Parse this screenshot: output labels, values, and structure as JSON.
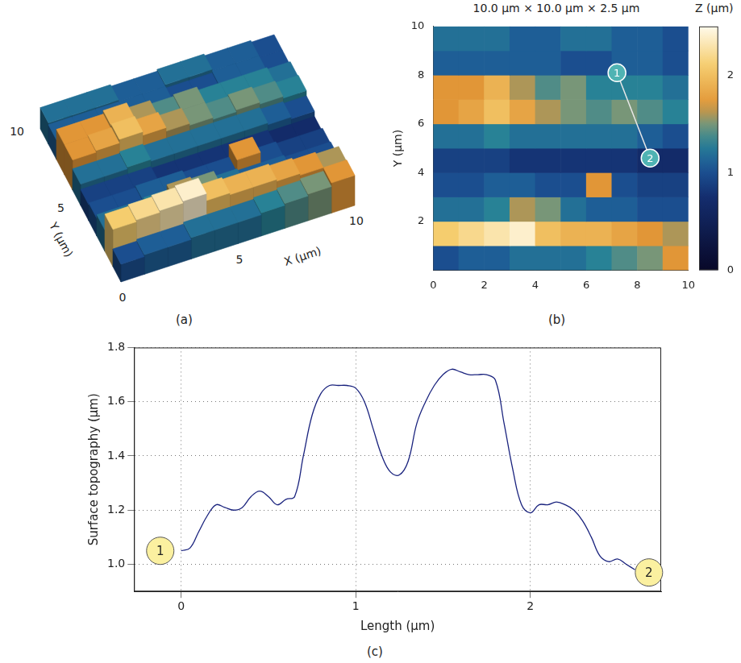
{
  "chart_data": [
    {
      "type": "surface",
      "label": "(a)",
      "x_edges": [
        0,
        1,
        2,
        3,
        4,
        5,
        6,
        7,
        8,
        9,
        10
      ],
      "y_edges": [
        0,
        1,
        2,
        3,
        4,
        5,
        6,
        7,
        8,
        9,
        10
      ],
      "z": [
        [
          1.0,
          1.1,
          1.1,
          1.2,
          1.2,
          1.2,
          1.3,
          1.4,
          1.5,
          1.7
        ],
        [
          2.1,
          2.2,
          2.3,
          2.4,
          2.0,
          1.9,
          1.9,
          1.8,
          1.7,
          1.6
        ],
        [
          1.2,
          1.2,
          1.3,
          1.6,
          1.5,
          1.2,
          1.1,
          1.1,
          1.0,
          1.0
        ],
        [
          1.0,
          1.0,
          1.1,
          1.1,
          1.0,
          1.0,
          1.7,
          1.0,
          0.9,
          0.9
        ],
        [
          0.9,
          0.9,
          0.9,
          0.8,
          0.8,
          0.8,
          0.8,
          0.8,
          0.7,
          0.7
        ],
        [
          1.2,
          1.2,
          1.3,
          1.2,
          1.2,
          1.2,
          1.2,
          1.2,
          1.1,
          1.0
        ],
        [
          1.7,
          1.8,
          2.0,
          1.8,
          1.6,
          1.5,
          1.4,
          1.5,
          1.4,
          1.3
        ],
        [
          1.7,
          1.7,
          1.9,
          1.6,
          1.4,
          1.5,
          1.3,
          1.3,
          1.3,
          1.2
        ],
        [
          1.1,
          1.1,
          1.1,
          1.1,
          1.1,
          1.0,
          1.0,
          1.1,
          1.1,
          1.0
        ],
        [
          1.2,
          1.2,
          1.2,
          1.1,
          1.1,
          1.2,
          1.2,
          1.1,
          1.1,
          1.0
        ]
      ],
      "zlim": [
        0,
        2.5
      ],
      "xlim": [
        0,
        10
      ],
      "ylim": [
        0,
        10
      ],
      "xticks": [
        0,
        5,
        10
      ],
      "yticks": [
        5,
        10
      ],
      "xlabel": "X (µm)",
      "ylabel": "Y (µm)"
    },
    {
      "type": "heatmap",
      "label": "(b)",
      "title": "10.0 µm × 10.0 µm × 2.5 µm",
      "x_edges": [
        0,
        1,
        2,
        3,
        4,
        5,
        6,
        7,
        8,
        9,
        10
      ],
      "y_edges": [
        0,
        1,
        2,
        3,
        4,
        5,
        6,
        7,
        8,
        9,
        10
      ],
      "z": [
        [
          1.0,
          1.1,
          1.1,
          1.2,
          1.2,
          1.2,
          1.3,
          1.4,
          1.5,
          1.7
        ],
        [
          2.1,
          2.2,
          2.3,
          2.4,
          2.0,
          1.9,
          1.9,
          1.8,
          1.7,
          1.6
        ],
        [
          1.2,
          1.2,
          1.3,
          1.6,
          1.5,
          1.2,
          1.1,
          1.1,
          1.0,
          1.0
        ],
        [
          1.0,
          1.0,
          1.1,
          1.1,
          1.0,
          1.0,
          1.7,
          1.0,
          0.9,
          0.9
        ],
        [
          0.9,
          0.9,
          0.9,
          0.8,
          0.8,
          0.8,
          0.8,
          0.8,
          0.7,
          0.7
        ],
        [
          1.2,
          1.2,
          1.3,
          1.2,
          1.2,
          1.2,
          1.2,
          1.2,
          1.1,
          1.0
        ],
        [
          1.7,
          1.8,
          2.0,
          1.8,
          1.6,
          1.5,
          1.4,
          1.5,
          1.4,
          1.3
        ],
        [
          1.7,
          1.7,
          1.9,
          1.6,
          1.4,
          1.5,
          1.3,
          1.3,
          1.3,
          1.2
        ],
        [
          1.1,
          1.1,
          1.1,
          1.1,
          1.1,
          1.0,
          1.0,
          1.1,
          1.1,
          1.0
        ],
        [
          1.2,
          1.2,
          1.2,
          1.1,
          1.1,
          1.2,
          1.2,
          1.1,
          1.1,
          1.0
        ]
      ],
      "xlim": [
        0,
        10
      ],
      "ylim": [
        0,
        10
      ],
      "xticks": [
        0,
        2,
        4,
        6,
        8,
        10
      ],
      "yticks": [
        2,
        4,
        6,
        8,
        10
      ],
      "ylabel": "Y (µm)",
      "colorbar_label": "Z (µm)",
      "colorbar_range": [
        0,
        2.5
      ],
      "colorbar_ticks": [
        0,
        1,
        2
      ],
      "annotations": [
        {
          "text": "1",
          "x": 7.2,
          "y": 8.1
        },
        {
          "text": "2",
          "x": 8.5,
          "y": 4.6
        }
      ]
    },
    {
      "type": "line",
      "label": "(c)",
      "x": [
        0,
        0.05,
        0.1,
        0.15,
        0.2,
        0.25,
        0.3,
        0.35,
        0.4,
        0.45,
        0.5,
        0.55,
        0.6,
        0.65,
        0.7,
        0.75,
        0.8,
        0.85,
        0.9,
        0.95,
        1.0,
        1.05,
        1.1,
        1.15,
        1.2,
        1.25,
        1.3,
        1.35,
        1.4,
        1.45,
        1.5,
        1.55,
        1.6,
        1.65,
        1.7,
        1.75,
        1.8,
        1.85,
        1.9,
        1.95,
        2.0,
        2.05,
        2.1,
        2.15,
        2.2,
        2.25,
        2.3,
        2.35,
        2.4,
        2.45,
        2.5,
        2.55,
        2.6
      ],
      "values": [
        1.05,
        1.06,
        1.12,
        1.18,
        1.22,
        1.21,
        1.2,
        1.21,
        1.25,
        1.27,
        1.25,
        1.22,
        1.24,
        1.25,
        1.4,
        1.55,
        1.63,
        1.66,
        1.66,
        1.66,
        1.65,
        1.6,
        1.5,
        1.4,
        1.34,
        1.33,
        1.38,
        1.52,
        1.6,
        1.66,
        1.7,
        1.72,
        1.71,
        1.7,
        1.7,
        1.7,
        1.68,
        1.52,
        1.35,
        1.22,
        1.19,
        1.22,
        1.22,
        1.23,
        1.22,
        1.2,
        1.16,
        1.1,
        1.03,
        1.01,
        1.02,
        1.0,
        0.98
      ],
      "color": "#1a237e",
      "xlim": [
        -0.27,
        2.75
      ],
      "ylim": [
        0.9,
        1.8
      ],
      "xticks": [
        0,
        1,
        2
      ],
      "yticks": [
        {
          "value": 1,
          "label": "1.0"
        },
        1.2,
        1.4,
        1.6,
        1.8
      ],
      "xlabel": "Length (µm)",
      "ylabel": "Surface topography (µm)",
      "grid": true,
      "annotations": [
        {
          "text": "1",
          "x": -0.12,
          "y": 1.05
        },
        {
          "text": "2",
          "x": 2.68,
          "y": 0.97
        }
      ]
    }
  ]
}
